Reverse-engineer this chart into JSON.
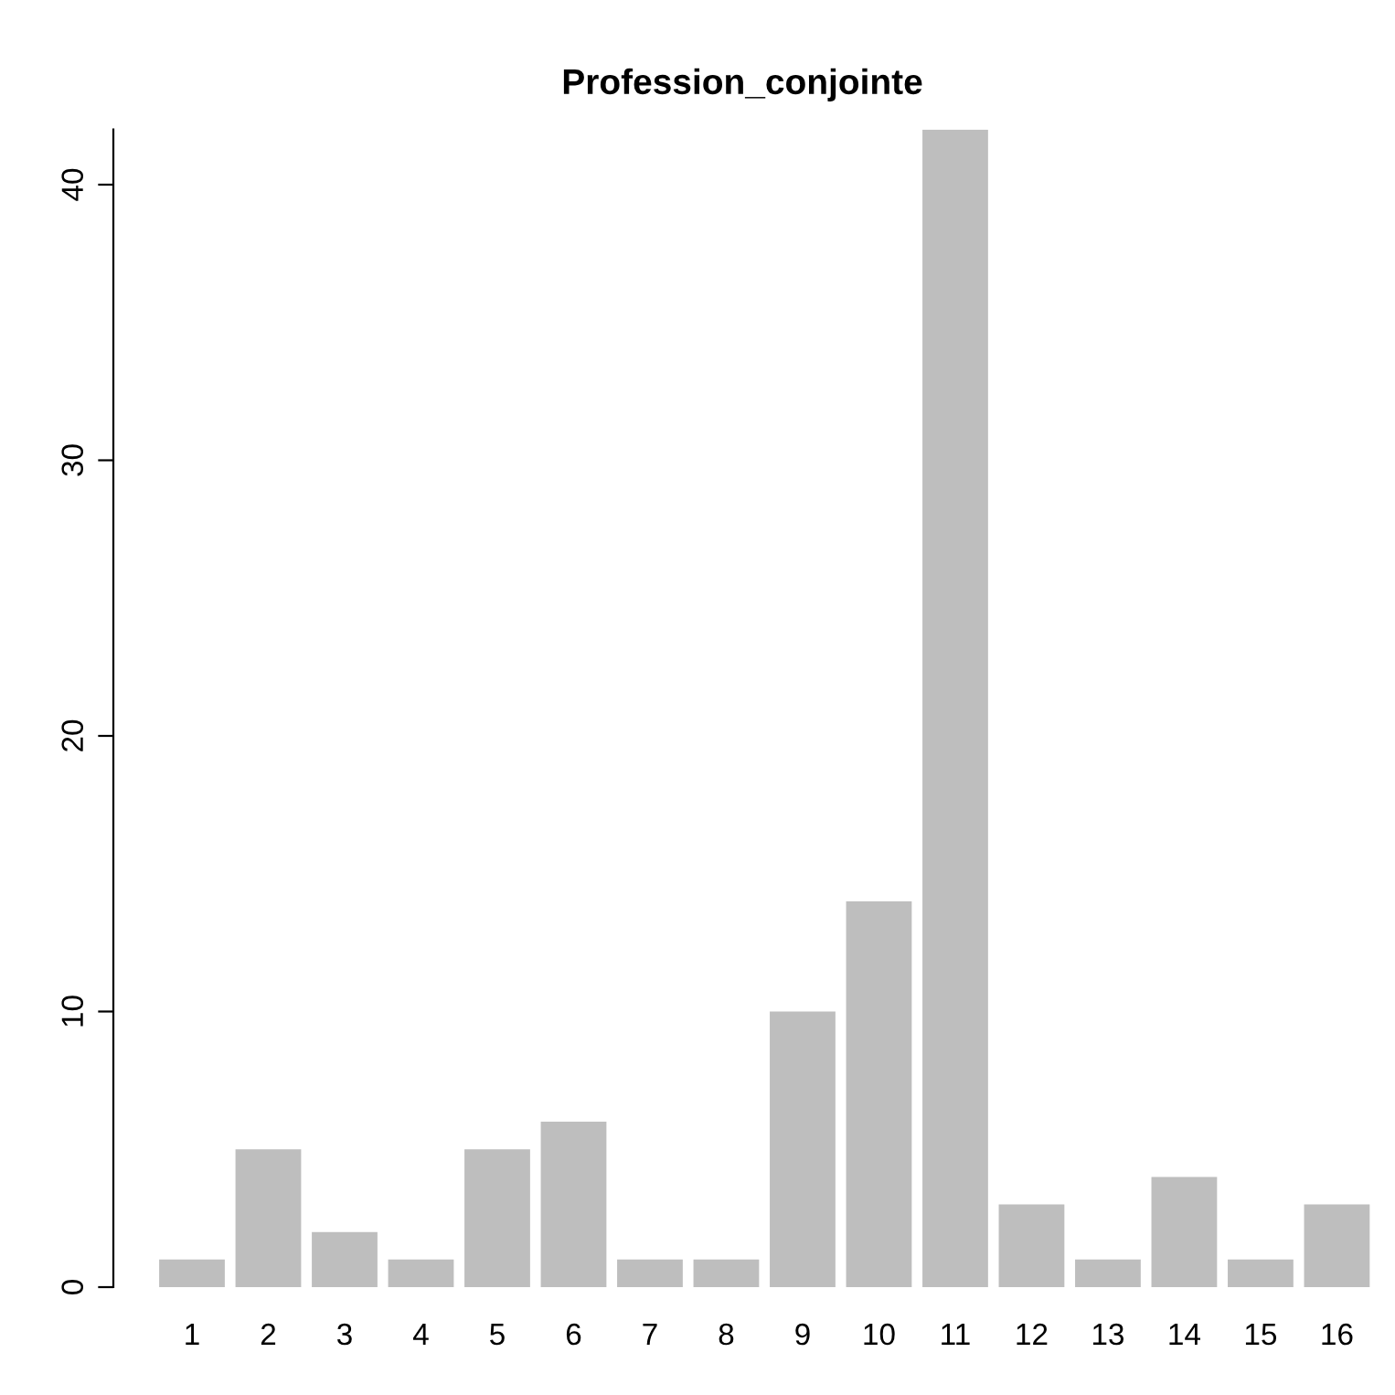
{
  "chart_data": {
    "type": "bar",
    "title": "Profession_conjointe",
    "categories": [
      "1",
      "2",
      "3",
      "4",
      "5",
      "6",
      "7",
      "8",
      "9",
      "10",
      "11",
      "12",
      "13",
      "14",
      "15",
      "16"
    ],
    "values": [
      1,
      5,
      2,
      1,
      5,
      6,
      1,
      1,
      10,
      14,
      42,
      3,
      1,
      4,
      1,
      3
    ],
    "color": "#bebebe",
    "ylim": [
      0,
      42
    ],
    "yticks": [
      0,
      10,
      20,
      30,
      40
    ],
    "grid": false
  }
}
